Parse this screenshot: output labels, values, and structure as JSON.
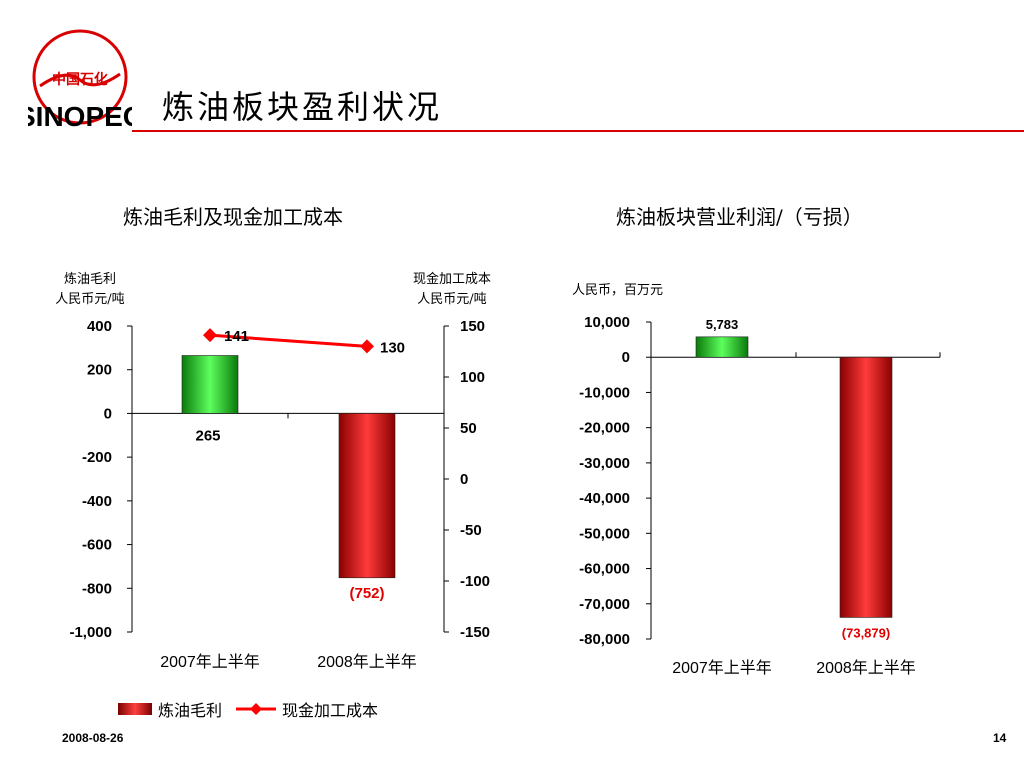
{
  "page": {
    "title": "炼油板块盈利状况",
    "footer_date": "2008-08-26",
    "page_number": "14",
    "logo_text": "中国石化 SINOPEC",
    "colors": {
      "accent_red": "#d80000",
      "bar_green": "#22c422",
      "bar_red": "#e00000",
      "line_red": "#ff0000"
    }
  },
  "chart_data": [
    {
      "type": "bar",
      "title": "炼油毛利及现金加工成本",
      "categories": [
        "2007年上半年",
        "2008年上半年"
      ],
      "y_left": {
        "label_line1": "炼油毛利",
        "label_line2": "人民币元/吨",
        "ylim": [
          -1000,
          400
        ],
        "ticks": [
          "400",
          "200",
          "0",
          "-200",
          "-400",
          "-600",
          "-800",
          "-1,000"
        ]
      },
      "y_right": {
        "label_line1": "现金加工成本",
        "label_line2": "人民币元/吨",
        "ylim": [
          -150,
          150
        ],
        "ticks": [
          "150",
          "100",
          "50",
          "0",
          "-50",
          "-100",
          "-150"
        ]
      },
      "series": [
        {
          "name": "炼油毛利",
          "kind": "bar",
          "axis": "left",
          "values": [
            265,
            -752
          ],
          "labels": [
            "265",
            "(752)"
          ],
          "colors": [
            "green",
            "red"
          ]
        },
        {
          "name": "现金加工成本",
          "kind": "line",
          "axis": "right",
          "values": [
            141,
            130
          ],
          "labels": [
            "141",
            "130"
          ],
          "marker": "diamond"
        }
      ],
      "legend": {
        "position": "bottom",
        "items": [
          "炼油毛利",
          "现金加工成本"
        ]
      }
    },
    {
      "type": "bar",
      "title": "炼油板块营业利润/（亏损）",
      "unit": "人民币，百万元",
      "categories": [
        "2007年上半年",
        "2008年上半年"
      ],
      "ylim": [
        -80000,
        10000
      ],
      "ticks": [
        "10,000",
        "0",
        "-10,000",
        "-20,000",
        "-30,000",
        "-40,000",
        "-50,000",
        "-60,000",
        "-70,000",
        "-80,000"
      ],
      "series": [
        {
          "values": [
            5783,
            -73879
          ],
          "labels": [
            "5,783",
            "(73,879)"
          ],
          "colors": [
            "green",
            "red"
          ]
        }
      ]
    }
  ]
}
